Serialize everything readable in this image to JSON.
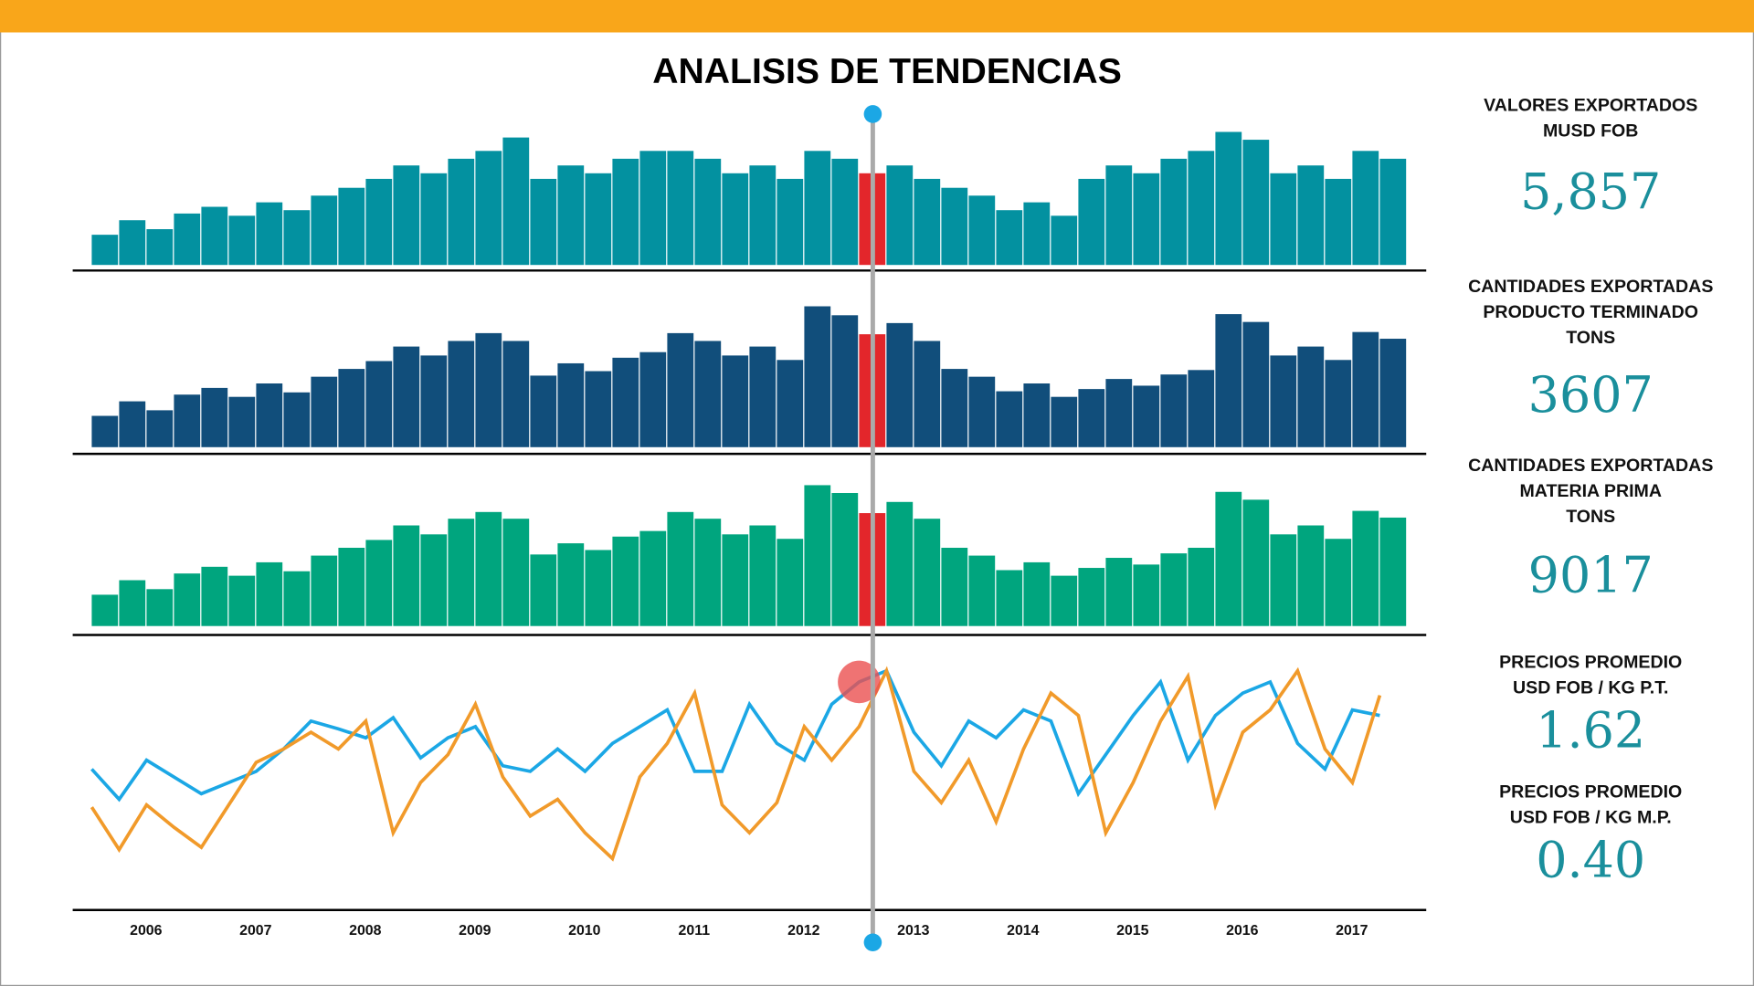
{
  "title": "ANALISIS DE TENDENCIAS",
  "years": [
    "2006",
    "2007",
    "2008",
    "2009",
    "2010",
    "2011",
    "2012",
    "2013",
    "2014",
    "2015",
    "2016",
    "2017"
  ],
  "selected_index": 28,
  "highlight_color": "#e3262b",
  "chart_data": [
    {
      "type": "bar",
      "color": "#0391a0",
      "ylim": [
        0,
        130
      ],
      "values": [
        27,
        40,
        32,
        46,
        52,
        44,
        56,
        49,
        62,
        69,
        77,
        89,
        82,
        95,
        102,
        114,
        77,
        89,
        82,
        95,
        102,
        102,
        95,
        82,
        89,
        77,
        102,
        95,
        82,
        89,
        77,
        69,
        62,
        49,
        56,
        44,
        77,
        89,
        82,
        95,
        102,
        119,
        112,
        82,
        89,
        77,
        102,
        95
      ]
    },
    {
      "type": "bar",
      "color": "#114e7b",
      "ylim": [
        0,
        130
      ],
      "values": [
        28,
        41,
        33,
        47,
        53,
        45,
        57,
        49,
        63,
        70,
        77,
        90,
        82,
        95,
        102,
        95,
        64,
        75,
        68,
        80,
        85,
        102,
        95,
        82,
        90,
        78,
        126,
        118,
        101,
        111,
        95,
        70,
        63,
        50,
        57,
        45,
        52,
        61,
        55,
        65,
        69,
        119,
        112,
        82,
        90,
        78,
        103,
        97
      ]
    },
    {
      "type": "bar",
      "color": "#00a57e",
      "ylim": [
        0,
        130
      ],
      "values": [
        28,
        41,
        33,
        47,
        53,
        45,
        57,
        49,
        63,
        70,
        77,
        90,
        82,
        96,
        102,
        96,
        64,
        74,
        68,
        80,
        85,
        102,
        96,
        82,
        90,
        78,
        126,
        119,
        101,
        111,
        96,
        70,
        63,
        50,
        57,
        45,
        52,
        61,
        55,
        65,
        70,
        120,
        113,
        82,
        90,
        78,
        103,
        97
      ]
    },
    {
      "type": "line",
      "ylim": [
        0,
        240
      ],
      "series": [
        {
          "color": "#1ba7e5",
          "values": [
            127,
            100,
            135,
            120,
            105,
            115,
            125,
            145,
            170,
            163,
            155,
            173,
            137,
            155,
            165,
            130,
            125,
            145,
            125,
            150,
            165,
            180,
            125,
            125,
            185,
            150,
            135,
            185,
            205,
            215,
            160,
            130,
            170,
            155,
            180,
            170,
            105,
            140,
            175,
            205,
            135,
            175,
            195,
            205,
            150,
            127,
            180,
            175
          ]
        },
        {
          "color": "#f19a2a",
          "values": [
            93,
            55,
            95,
            75,
            57,
            95,
            133,
            145,
            160,
            145,
            170,
            70,
            115,
            140,
            185,
            120,
            85,
            100,
            70,
            47,
            120,
            150,
            195,
            95,
            70,
            97,
            165,
            135,
            165,
            215,
            125,
            97,
            135,
            80,
            145,
            195,
            175,
            70,
            115,
            170,
            210,
            95,
            160,
            180,
            215,
            145,
            115,
            193
          ]
        }
      ]
    }
  ],
  "kpis": [
    {
      "label": [
        "VALORES EXPORTADOS",
        "MUSD FOB"
      ],
      "value": "5,857"
    },
    {
      "label": [
        "CANTIDADES EXPORTADAS",
        "PRODUCTO TERMINADO",
        "TONS"
      ],
      "value": "3607"
    },
    {
      "label": [
        "CANTIDADES EXPORTADAS",
        "MATERIA PRIMA",
        "TONS"
      ],
      "value": "9017"
    },
    {
      "label": [
        "PRECIOS PROMEDIO",
        "USD FOB / KG  P.T."
      ],
      "value": "1.62"
    },
    {
      "label": [
        "PRECIOS PROMEDIO",
        "USD FOB / KG  M.P."
      ],
      "value": "0.40"
    }
  ]
}
